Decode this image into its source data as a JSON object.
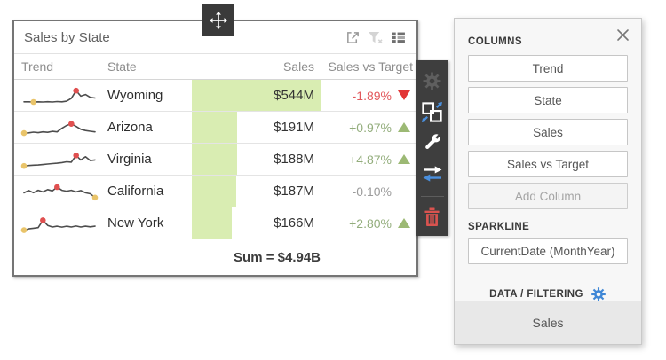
{
  "widget": {
    "title": "Sales by State",
    "header_icons": [
      "export",
      "clear-filter",
      "columns-layout"
    ],
    "columns": [
      "Trend",
      "State",
      "Sales",
      "Sales vs Target"
    ],
    "max_sales": 544,
    "rows": [
      {
        "state": "Wyoming",
        "sales": "$544M",
        "sales_value": 544,
        "target": "-1.89%",
        "direction": "down",
        "spark": [
          12,
          12,
          11,
          12,
          11,
          13,
          11,
          14,
          12,
          16,
          34,
          82,
          48,
          58,
          40,
          36
        ]
      },
      {
        "state": "Arizona",
        "sales": "$191M",
        "sales_value": 191,
        "target": "+0.97%",
        "direction": "up",
        "spark": [
          16,
          18,
          22,
          19,
          24,
          21,
          27,
          24,
          46,
          64,
          74,
          58,
          40,
          32,
          28,
          24
        ]
      },
      {
        "state": "Virginia",
        "sales": "$188M",
        "sales_value": 188,
        "target": "+4.87%",
        "direction": "up",
        "spark": [
          10,
          13,
          15,
          16,
          19,
          22,
          25,
          27,
          31,
          36,
          34,
          76,
          48,
          68,
          44,
          48
        ]
      },
      {
        "state": "California",
        "sales": "$187M",
        "sales_value": 187,
        "target": "-0.10%",
        "direction": "none",
        "spark": [
          42,
          56,
          43,
          58,
          48,
          62,
          54,
          78,
          58,
          52,
          58,
          48,
          56,
          42,
          36,
          12
        ]
      },
      {
        "state": "New York",
        "sales": "$166M",
        "sales_value": 166,
        "target": "+2.80%",
        "direction": "up",
        "spark": [
          8,
          16,
          20,
          24,
          70,
          38,
          28,
          33,
          27,
          33,
          28,
          34,
          28,
          33,
          29,
          33
        ]
      }
    ],
    "summary": "Sum = $4.94B"
  },
  "move_handle": {
    "icon": "move"
  },
  "side_toolbar": {
    "items": [
      "gear",
      "convert",
      "wrench",
      "transfer-arrows",
      "delete"
    ]
  },
  "panel": {
    "close_icon": "close",
    "sections": {
      "columns": {
        "label": "COLUMNS",
        "buttons": [
          "Trend",
          "State",
          "Sales",
          "Sales vs Target"
        ],
        "add_button": "Add Column"
      },
      "sparkline": {
        "label": "SPARKLINE",
        "button": "CurrentDate (MonthYear)"
      },
      "data_filtering": {
        "label": "DATA / FILTERING",
        "icon": "gear"
      }
    },
    "footer": {
      "label": "Sales"
    }
  },
  "colors": {
    "accent_blue": "#3f87d6",
    "bar_green": "#d9edb2",
    "positive_text": "#93ad7c",
    "negative_text": "#e2585c",
    "neutral_text": "#9b9b9b",
    "triangle_up": "#9cb974",
    "triangle_down": "#e23434",
    "spark_line": "#4d4d4d",
    "spark_max": "#e05050",
    "spark_min": "#e9c46a",
    "toolbar_bg": "#3e3e3e",
    "trash_red": "#d9534f"
  }
}
